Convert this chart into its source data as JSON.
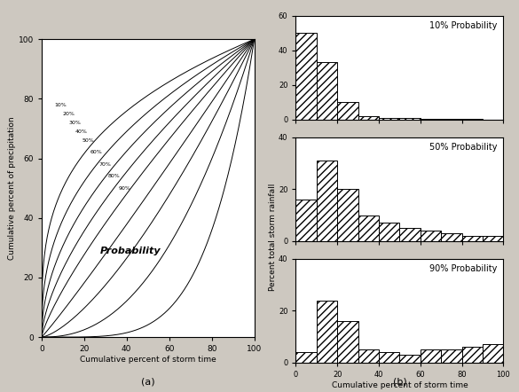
{
  "title_a": "(a)",
  "title_b": "(b)",
  "background_color": "#cdc8c0",
  "left_xlabel": "Cumulative percent of storm time",
  "left_ylabel": "Cumulative percent of precipitation",
  "right_ylabel": "Percent total storm rainfall",
  "right_xlabel": "Cumulative percent of storm time",
  "probability_label": "Probability",
  "curve_labels": [
    "10%",
    "20%",
    "30%",
    "40%",
    "50%",
    "60%",
    "70%",
    "80%",
    "90%"
  ],
  "hist_10": [
    50,
    33,
    10,
    2,
    1,
    1,
    0.5,
    0.5,
    0.5,
    0
  ],
  "hist_50": [
    16,
    31,
    20,
    10,
    7,
    5,
    4,
    3,
    2,
    2
  ],
  "hist_90": [
    4,
    24,
    16,
    5,
    4,
    3,
    5,
    5,
    6,
    7
  ],
  "hist_bins": [
    0,
    10,
    20,
    30,
    40,
    50,
    60,
    70,
    80,
    90,
    100
  ],
  "ylim_10": [
    0,
    60
  ],
  "ylim_50": [
    0,
    40
  ],
  "ylim_90": [
    0,
    40
  ],
  "yticks_10": [
    0,
    20,
    40,
    60
  ],
  "yticks_50": [
    0,
    20,
    40
  ],
  "yticks_90": [
    0,
    20,
    40
  ],
  "xticks": [
    0,
    20,
    40,
    60,
    80,
    100
  ]
}
